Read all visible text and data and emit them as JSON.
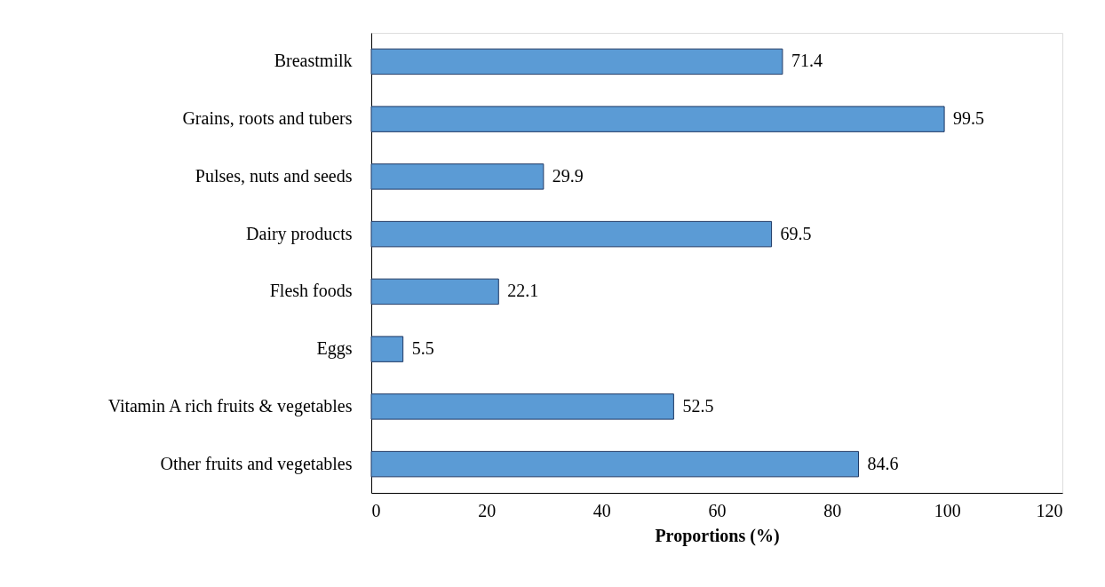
{
  "chart_data": {
    "type": "bar",
    "orientation": "horizontal",
    "xlabel": "Proportions (%)",
    "categories": [
      "Breastmilk",
      "Grains, roots and tubers",
      "Pulses, nuts and seeds",
      "Dairy products",
      "Flesh foods",
      "Eggs",
      "Vitamin A rich fruits & vegetables",
      "Other fruits and vegetables"
    ],
    "values": [
      71.4,
      99.5,
      29.9,
      69.5,
      22.1,
      5.5,
      52.5,
      84.6
    ],
    "color": "#5b9bd5",
    "xlim": [
      0,
      120
    ],
    "xticks": [
      0,
      20,
      40,
      60,
      80,
      100,
      120
    ],
    "grid": false,
    "data_labels": true
  }
}
